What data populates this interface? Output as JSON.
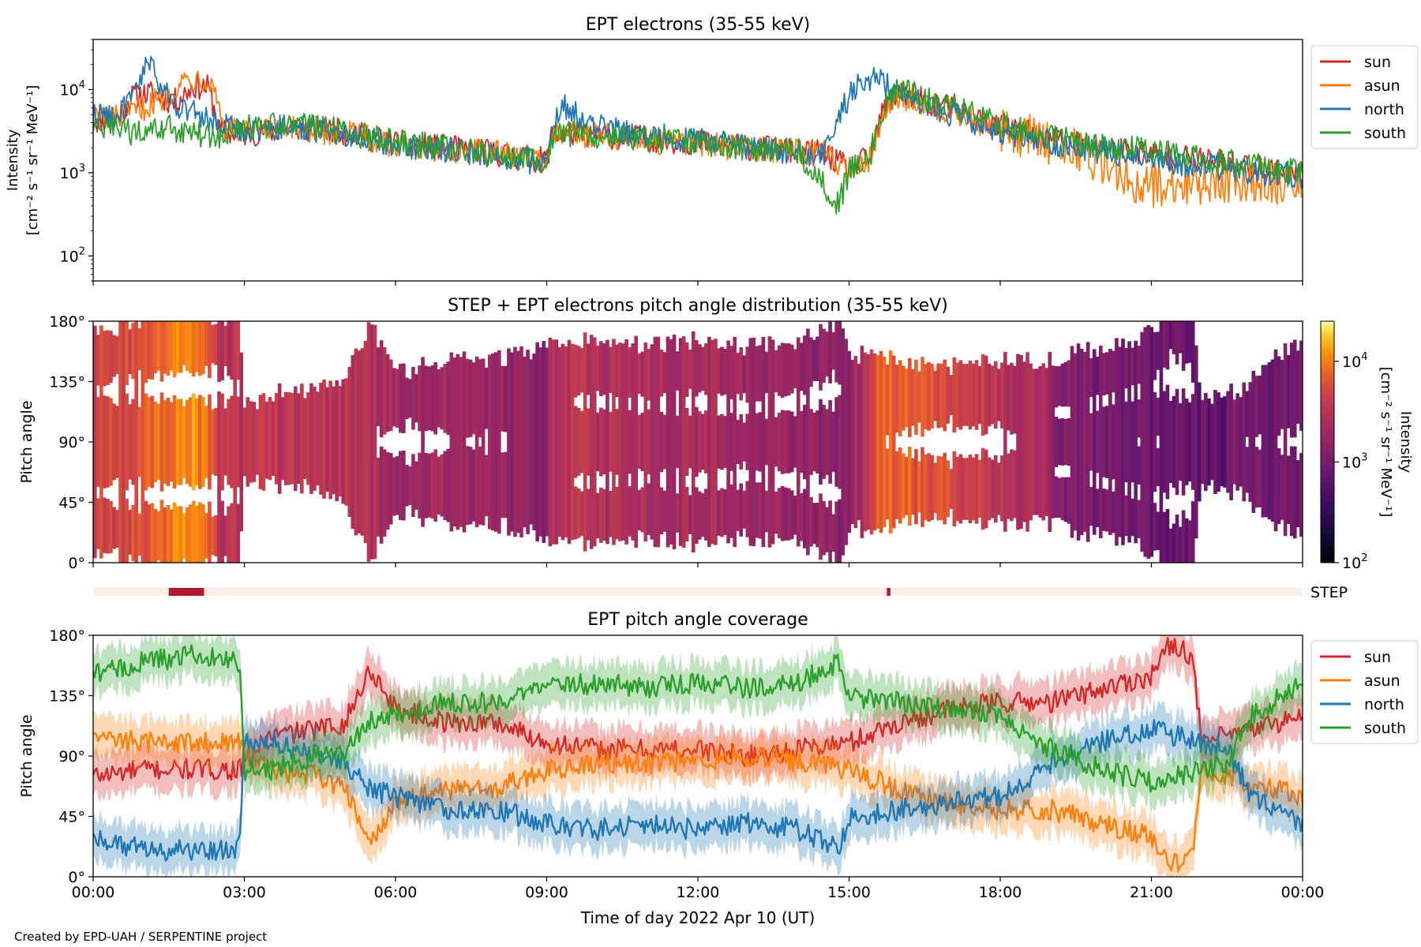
{
  "footer": "Created by EPD-UAH / SERPENTINE project",
  "chart_data": [
    {
      "type": "line",
      "title": "EPT electrons (35-55 keV)",
      "ylabel_line1": "Intensity",
      "ylabel_line2": "[cm⁻² s⁻¹ sr⁻¹ MeV⁻¹]",
      "yscale": "log",
      "ylim": [
        50,
        40000
      ],
      "yticks": [
        {
          "value": 100,
          "base": "10",
          "exp": "2"
        },
        {
          "value": 1000,
          "base": "10",
          "exp": "3"
        },
        {
          "value": 10000,
          "base": "10",
          "exp": "4"
        }
      ],
      "xlim_hours": [
        0,
        24
      ],
      "legend_position": "outside-right-top",
      "series": [
        {
          "name": "sun",
          "color": "#d62728",
          "x": [
            0,
            0.5,
            0.8,
            1.2,
            1.6,
            2.0,
            2.3,
            2.5,
            3.0,
            4.0,
            5.0,
            6.0,
            7.0,
            8.0,
            9.0,
            9.1,
            9.5,
            10.5,
            12.0,
            13.0,
            14.5,
            15.0,
            15.4,
            15.7,
            16.0,
            17.0,
            18.0,
            19.5,
            21.0,
            22.0,
            23.0,
            24.0
          ],
          "y": [
            4200,
            4500,
            8500,
            9000,
            7000,
            11000,
            10500,
            3200,
            2900,
            3500,
            3100,
            2300,
            2000,
            1700,
            1400,
            2800,
            3000,
            2700,
            2300,
            2000,
            1700,
            1100,
            1500,
            6000,
            9000,
            6000,
            3500,
            2300,
            1700,
            1400,
            1200,
            900
          ]
        },
        {
          "name": "asun",
          "color": "#ff7f0e",
          "x": [
            0,
            0.5,
            1.0,
            1.5,
            1.8,
            2.2,
            2.4,
            2.6,
            3.0,
            4.0,
            5.0,
            6.0,
            7.0,
            8.0,
            9.0,
            9.1,
            9.5,
            10.5,
            12.0,
            13.0,
            14.5,
            15.0,
            15.4,
            15.7,
            16.0,
            17.0,
            18.0,
            19.5,
            20.5,
            21.0,
            22.0,
            23.0,
            24.0
          ],
          "y": [
            5000,
            4600,
            6000,
            9000,
            13000,
            14000,
            11000,
            3500,
            3000,
            3300,
            3000,
            2200,
            1900,
            1700,
            1400,
            2700,
            3000,
            2600,
            2200,
            2000,
            1700,
            1100,
            1500,
            5500,
            8500,
            5500,
            3200,
            2000,
            900,
            700,
            750,
            800,
            750
          ]
        },
        {
          "name": "north",
          "color": "#1f77b4",
          "x": [
            0,
            0.5,
            0.9,
            1.05,
            1.3,
            1.6,
            2.0,
            2.5,
            3.0,
            4.0,
            5.0,
            6.0,
            7.0,
            8.0,
            9.0,
            9.1,
            9.3,
            9.8,
            10.5,
            12.0,
            13.0,
            14.5,
            14.9,
            15.1,
            15.5,
            16.0,
            16.5,
            17.0,
            18.0,
            19.5,
            21.0,
            22.0,
            23.0,
            24.0
          ],
          "y": [
            5000,
            4800,
            10000,
            24000,
            12000,
            7000,
            5200,
            3700,
            3300,
            3600,
            3000,
            2200,
            1900,
            1600,
            1300,
            4200,
            6500,
            4000,
            3000,
            2500,
            2000,
            1600,
            6500,
            10000,
            14000,
            9000,
            7000,
            5200,
            3200,
            2000,
            1500,
            1200,
            1000,
            900
          ]
        },
        {
          "name": "south",
          "color": "#2ca02c",
          "x": [
            0,
            0.5,
            1.0,
            1.5,
            2.0,
            2.3,
            2.5,
            3.0,
            4.0,
            5.0,
            6.0,
            7.0,
            8.0,
            9.0,
            9.1,
            9.5,
            10.5,
            12.0,
            13.0,
            14.0,
            14.8,
            15.0,
            15.4,
            15.7,
            16.0,
            17.0,
            18.0,
            19.5,
            21.0,
            22.0,
            23.0,
            24.0
          ],
          "y": [
            3500,
            3300,
            2800,
            3500,
            3000,
            2800,
            2500,
            3400,
            3900,
            3100,
            2300,
            2000,
            1700,
            1400,
            2700,
            3000,
            2700,
            2300,
            2000,
            1800,
            400,
            1100,
            1500,
            6500,
            10000,
            6500,
            3800,
            2300,
            1800,
            1500,
            1200,
            1000
          ]
        }
      ]
    },
    {
      "type": "heatmap",
      "title": "STEP + EPT electrons pitch angle distribution (35-55 keV)",
      "ylabel": "Pitch angle",
      "ylim": [
        0,
        180
      ],
      "yticks": [
        "0°",
        "45°",
        "90°",
        "135°",
        "180°"
      ],
      "xlim_hours": [
        0,
        24
      ],
      "colormap": "inferno",
      "colorbar": {
        "scale": "log",
        "range": [
          100,
          25000
        ],
        "label_line1": "Intensity",
        "label_line2": "[cm⁻² s⁻¹ sr⁻¹ MeV⁻¹]",
        "ticks": [
          {
            "value": 100,
            "base": "10",
            "exp": "2"
          },
          {
            "value": 1000,
            "base": "10",
            "exp": "3"
          },
          {
            "value": 10000,
            "base": "10",
            "exp": "4"
          }
        ]
      },
      "intensity_profile": {
        "x": [
          0,
          0.5,
          1.0,
          1.5,
          2.0,
          2.3,
          2.5,
          3.0,
          4.0,
          5.0,
          6.0,
          7.0,
          8.0,
          9.0,
          9.1,
          9.5,
          10.5,
          12.0,
          13.0,
          14.0,
          14.9,
          15.4,
          15.7,
          16.0,
          17.0,
          18.0,
          19.0,
          20.0,
          21.0,
          22.0,
          23.0,
          24.0
        ],
        "y": [
          4500,
          5000,
          6000,
          9000,
          11000,
          8000,
          3500,
          3200,
          3500,
          3100,
          2200,
          2000,
          1700,
          1400,
          2900,
          3200,
          2700,
          2300,
          2000,
          1700,
          1300,
          4000,
          8500,
          8000,
          5500,
          3200,
          2200,
          1700,
          1400,
          1200,
          1000,
          900
        ]
      },
      "step_indicator_label": "STEP",
      "step_intervals_hours": [
        [
          1.5,
          2.2
        ],
        [
          15.75,
          15.82
        ]
      ]
    },
    {
      "type": "line",
      "title": "EPT pitch angle coverage",
      "ylabel": "Pitch angle",
      "xlabel": "Time of day 2022 Apr 10 (UT)",
      "ylim": [
        0,
        180
      ],
      "yticks": [
        "0°",
        "45°",
        "90°",
        "135°",
        "180°"
      ],
      "xlim_hours": [
        0,
        24
      ],
      "xticks": [
        "00:00",
        "03:00",
        "06:00",
        "09:00",
        "12:00",
        "15:00",
        "18:00",
        "21:00",
        "00:00"
      ],
      "legend_position": "outside-right-top",
      "series": [
        {
          "name": "sun",
          "color": "#d62728",
          "x": [
            0,
            1,
            2,
            2.9,
            3.5,
            4.5,
            5.0,
            5.5,
            6.0,
            7.0,
            8.0,
            9.0,
            10.0,
            11.0,
            12.0,
            13.0,
            14.0,
            15.0,
            16.0,
            17.0,
            18.0,
            19.0,
            20.0,
            21.0,
            21.4,
            21.8,
            22.0,
            22.5,
            23.0,
            24.0
          ],
          "y": [
            75,
            80,
            80,
            80,
            105,
            110,
            115,
            155,
            125,
            115,
            115,
            100,
            95,
            95,
            95,
            90,
            95,
            100,
            115,
            125,
            130,
            130,
            140,
            150,
            175,
            165,
            100,
            105,
            110,
            120
          ]
        },
        {
          "name": "asun",
          "color": "#ff7f0e",
          "x": [
            0,
            1,
            2,
            2.9,
            3.5,
            4.5,
            5.0,
            5.5,
            6.0,
            7.0,
            8.0,
            9.0,
            10.0,
            11.0,
            12.0,
            13.0,
            14.0,
            15.0,
            16.0,
            17.0,
            18.0,
            19.0,
            20.0,
            21.0,
            21.4,
            21.8,
            22.0,
            22.5,
            23.0,
            24.0
          ],
          "y": [
            105,
            100,
            100,
            100,
            80,
            75,
            65,
            25,
            55,
            65,
            65,
            80,
            85,
            85,
            85,
            90,
            85,
            80,
            65,
            55,
            50,
            50,
            40,
            30,
            10,
            15,
            80,
            75,
            70,
            60
          ]
        },
        {
          "name": "north",
          "color": "#1f77b4",
          "x": [
            0,
            1,
            2,
            2.9,
            3.0,
            3.5,
            4.5,
            5.0,
            5.5,
            6.0,
            7.0,
            8.0,
            9.0,
            10.0,
            11.0,
            12.0,
            13.0,
            14.0,
            14.8,
            15.0,
            16.0,
            17.0,
            18.0,
            19.0,
            20.0,
            21.0,
            22.0,
            22.5,
            23.0,
            24.0
          ],
          "y": [
            30,
            20,
            20,
            20,
            100,
            100,
            90,
            85,
            65,
            60,
            50,
            50,
            40,
            35,
            40,
            35,
            40,
            35,
            20,
            45,
            50,
            55,
            60,
            85,
            100,
            110,
            100,
            95,
            60,
            40
          ]
        },
        {
          "name": "south",
          "color": "#2ca02c",
          "x": [
            0,
            1,
            2,
            2.9,
            3.0,
            3.5,
            4.5,
            5.0,
            5.5,
            6.0,
            7.0,
            8.0,
            9.0,
            10.0,
            11.0,
            12.0,
            13.0,
            14.0,
            14.8,
            15.0,
            16.0,
            17.0,
            18.0,
            19.0,
            20.0,
            21.0,
            22.0,
            22.5,
            23.0,
            24.0
          ],
          "y": [
            150,
            160,
            165,
            160,
            80,
            80,
            90,
            95,
            115,
            120,
            130,
            130,
            140,
            145,
            140,
            145,
            140,
            145,
            160,
            135,
            130,
            125,
            120,
            95,
            80,
            70,
            80,
            85,
            120,
            145
          ]
        }
      ]
    }
  ]
}
